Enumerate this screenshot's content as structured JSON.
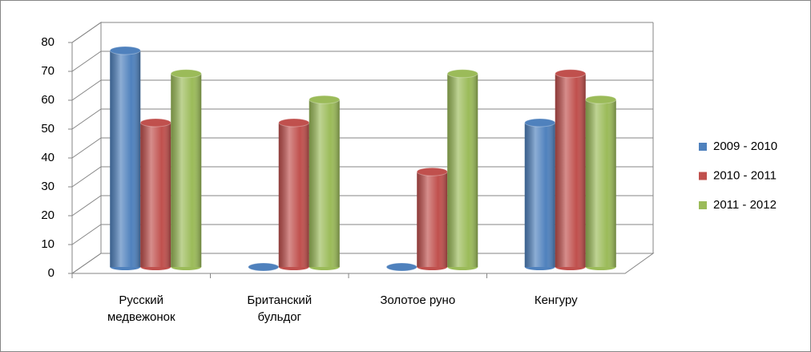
{
  "chart_data": {
    "type": "bar3d",
    "categories": [
      "Русский медвежонок",
      "Британский бульдог",
      "Золотое руно",
      "Кенгуру"
    ],
    "series": [
      {
        "name": "2009 - 2010",
        "color": "#4f81bd",
        "values": [
          75,
          0,
          0,
          50
        ]
      },
      {
        "name": "2010 - 2011",
        "color": "#c0504d",
        "values": [
          50,
          50,
          33,
          67
        ]
      },
      {
        "name": "2011 - 2012",
        "color": "#9bbb59",
        "values": [
          67,
          58,
          67,
          58
        ]
      }
    ],
    "ylim": [
      0,
      80
    ],
    "yticks": [
      0,
      10,
      20,
      30,
      40,
      50,
      60,
      70,
      80
    ],
    "grid": true,
    "legend": "right"
  }
}
